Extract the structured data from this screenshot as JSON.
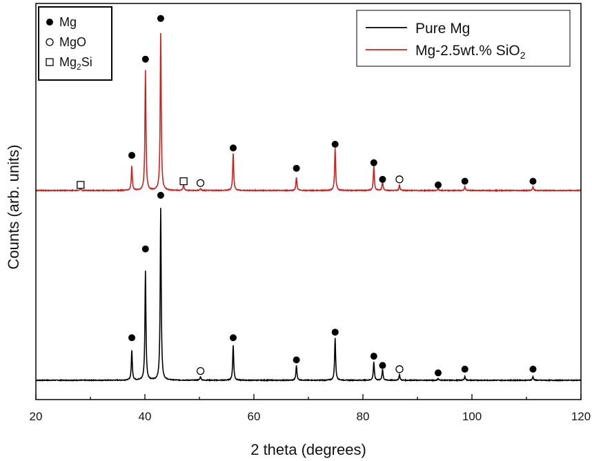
{
  "chart_data": {
    "type": "line",
    "xlabel": "2 theta (degrees)",
    "ylabel": "Counts (arb. units)",
    "xlim": [
      20,
      120
    ],
    "x_ticks": [
      20,
      40,
      60,
      80,
      100,
      120
    ],
    "y_ticks_shown": false,
    "grid": false,
    "series": [
      {
        "name": "Pure Mg",
        "color": "#000000",
        "baseline": 0,
        "peaks": [
          {
            "x": 37.6,
            "y": 0.16
          },
          {
            "x": 40.1,
            "y": 0.59
          },
          {
            "x": 42.9,
            "y": 0.93
          },
          {
            "x": 50.2,
            "y": 0.02
          },
          {
            "x": 56.2,
            "y": 0.19
          },
          {
            "x": 67.8,
            "y": 0.08
          },
          {
            "x": 74.9,
            "y": 0.23
          },
          {
            "x": 82.0,
            "y": 0.1
          },
          {
            "x": 83.6,
            "y": 0.06
          },
          {
            "x": 86.7,
            "y": 0.03
          },
          {
            "x": 93.8,
            "y": 0.01
          },
          {
            "x": 98.7,
            "y": 0.02
          },
          {
            "x": 111.2,
            "y": 0.02
          }
        ]
      },
      {
        "name": "Mg-2.5wt.% SiO2",
        "color": "#cc1f1f",
        "baseline": 1,
        "peaks": [
          {
            "x": 28.2,
            "y": 0.01
          },
          {
            "x": 37.6,
            "y": 0.13
          },
          {
            "x": 40.1,
            "y": 0.65
          },
          {
            "x": 42.9,
            "y": 0.85
          },
          {
            "x": 47.1,
            "y": 0.03
          },
          {
            "x": 50.2,
            "y": 0.01
          },
          {
            "x": 56.2,
            "y": 0.2
          },
          {
            "x": 67.8,
            "y": 0.07
          },
          {
            "x": 74.9,
            "y": 0.23
          },
          {
            "x": 82.0,
            "y": 0.13
          },
          {
            "x": 83.6,
            "y": 0.05
          },
          {
            "x": 86.7,
            "y": 0.03
          },
          {
            "x": 93.8,
            "y": 0.01
          },
          {
            "x": 98.7,
            "y": 0.02
          },
          {
            "x": 111.2,
            "y": 0.02
          }
        ]
      }
    ],
    "phase_markers": [
      {
        "series": 1,
        "x": 28.2,
        "phase": "Mg2Si",
        "y": 0.03
      },
      {
        "series": 1,
        "x": 37.6,
        "phase": "Mg",
        "y": 0.19
      },
      {
        "series": 1,
        "x": 40.1,
        "phase": "Mg",
        "y": 0.71
      },
      {
        "series": 1,
        "x": 42.9,
        "phase": "Mg",
        "y": 0.93
      },
      {
        "series": 1,
        "x": 47.1,
        "phase": "Mg2Si",
        "y": 0.05
      },
      {
        "series": 1,
        "x": 50.2,
        "phase": "MgO",
        "y": 0.04
      },
      {
        "series": 1,
        "x": 56.2,
        "phase": "Mg",
        "y": 0.23
      },
      {
        "series": 1,
        "x": 67.8,
        "phase": "Mg",
        "y": 0.12
      },
      {
        "series": 1,
        "x": 74.9,
        "phase": "Mg",
        "y": 0.25
      },
      {
        "series": 1,
        "x": 82.0,
        "phase": "Mg",
        "y": 0.15
      },
      {
        "series": 1,
        "x": 83.6,
        "phase": "Mg",
        "y": 0.06
      },
      {
        "series": 1,
        "x": 86.7,
        "phase": "MgO",
        "y": 0.06
      },
      {
        "series": 1,
        "x": 93.8,
        "phase": "Mg",
        "y": 0.03
      },
      {
        "series": 1,
        "x": 98.7,
        "phase": "Mg",
        "y": 0.05
      },
      {
        "series": 1,
        "x": 111.2,
        "phase": "Mg",
        "y": 0.05
      },
      {
        "series": 0,
        "x": 37.6,
        "phase": "Mg",
        "y": 0.23
      },
      {
        "series": 0,
        "x": 40.1,
        "phase": "Mg",
        "y": 0.71
      },
      {
        "series": 0,
        "x": 42.9,
        "phase": "Mg",
        "y": 1.0
      },
      {
        "series": 0,
        "x": 50.2,
        "phase": "MgO",
        "y": 0.05
      },
      {
        "series": 0,
        "x": 56.2,
        "phase": "Mg",
        "y": 0.23
      },
      {
        "series": 0,
        "x": 67.8,
        "phase": "Mg",
        "y": 0.11
      },
      {
        "series": 0,
        "x": 74.9,
        "phase": "Mg",
        "y": 0.26
      },
      {
        "series": 0,
        "x": 82.0,
        "phase": "Mg",
        "y": 0.13
      },
      {
        "series": 0,
        "x": 83.6,
        "phase": "Mg",
        "y": 0.08
      },
      {
        "series": 0,
        "x": 86.7,
        "phase": "MgO",
        "y": 0.06
      },
      {
        "series": 0,
        "x": 93.8,
        "phase": "Mg",
        "y": 0.04
      },
      {
        "series": 0,
        "x": 98.7,
        "phase": "Mg",
        "y": 0.06
      },
      {
        "series": 0,
        "x": 111.2,
        "phase": "Mg",
        "y": 0.06
      }
    ],
    "phase_legend": {
      "placement": "top-left",
      "entries": [
        {
          "phase": "Mg",
          "symbol": "filled-circle",
          "label_base": "Mg",
          "label_sub": "",
          "label_tail": ""
        },
        {
          "phase": "MgO",
          "symbol": "open-circle",
          "label_base": "MgO",
          "label_sub": "",
          "label_tail": ""
        },
        {
          "phase": "Mg2Si",
          "symbol": "open-square",
          "label_base": "Mg",
          "label_sub": "2",
          "label_tail": "Si"
        }
      ]
    },
    "series_legend": {
      "placement": "top-right",
      "entries": [
        {
          "series": 0,
          "label_base": "Pure Mg",
          "label_sub": ""
        },
        {
          "series": 1,
          "label_base": "Mg-2.5wt.% SiO",
          "label_sub": "2"
        }
      ]
    }
  }
}
